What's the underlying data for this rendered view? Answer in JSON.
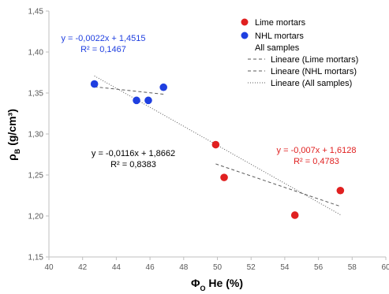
{
  "chart_data": {
    "type": "scatter",
    "xlabel": "ΦO He (%)",
    "xlabel_main": "Φ",
    "xlabel_sub": "O",
    "xlabel_rest": " He (%)",
    "ylabel": "ρB (g/cm³)",
    "ylabel_main": "ρ",
    "ylabel_sub": "B",
    "ylabel_rest": " (g/cm³)",
    "xlim": [
      40,
      60
    ],
    "ylim": [
      1.15,
      1.45
    ],
    "x_ticks": [
      40,
      42,
      44,
      46,
      48,
      50,
      52,
      54,
      56,
      58,
      60
    ],
    "y_ticks": [
      1.15,
      1.2,
      1.25,
      1.3,
      1.35,
      1.4,
      1.45
    ],
    "x_tick_labels": [
      "40",
      "42",
      "44",
      "46",
      "48",
      "50",
      "52",
      "54",
      "56",
      "58",
      "60"
    ],
    "y_tick_labels": [
      "1,15",
      "1,20",
      "1,25",
      "1,30",
      "1,35",
      "1,40",
      "1,45"
    ],
    "grid": false,
    "legend_position": "top-right",
    "series": [
      {
        "name": "Lime mortars",
        "color": "#e02020",
        "points": [
          [
            49.9,
            1.287
          ],
          [
            50.4,
            1.247
          ],
          [
            54.6,
            1.201
          ],
          [
            57.3,
            1.231
          ]
        ]
      },
      {
        "name": "NHL mortars",
        "color": "#1f3fe0",
        "points": [
          [
            42.7,
            1.361
          ],
          [
            45.2,
            1.341
          ],
          [
            45.9,
            1.341
          ],
          [
            46.8,
            1.357
          ]
        ]
      }
    ],
    "legend_extra": "All samples",
    "trendlines": [
      {
        "name": "Lineare (Lime mortars)",
        "style": "dashed",
        "slope": -0.007,
        "intercept": 1.6128,
        "x_range": [
          49.9,
          57.3
        ]
      },
      {
        "name": "Lineare (NHL mortars)",
        "style": "dashed",
        "slope": -0.0022,
        "intercept": 1.4515,
        "x_range": [
          42.7,
          46.8
        ]
      },
      {
        "name": "Lineare (All samples)",
        "style": "dotted",
        "slope": -0.0116,
        "intercept": 1.8662,
        "x_range": [
          42.7,
          57.3
        ]
      }
    ],
    "annotations": [
      {
        "id": "nhl",
        "line1": "y = -0,0022x + 1,4515",
        "line2": "R² = 0,1467",
        "color": "#1f3fe0"
      },
      {
        "id": "all",
        "line1": "y = -0,0116x + 1,8662",
        "line2": "R² = 0,8383",
        "color": "#000000"
      },
      {
        "id": "lime",
        "line1": "y = -0,007x + 1,6128",
        "line2": "R² = 0,4783",
        "color": "#e02020"
      }
    ]
  }
}
